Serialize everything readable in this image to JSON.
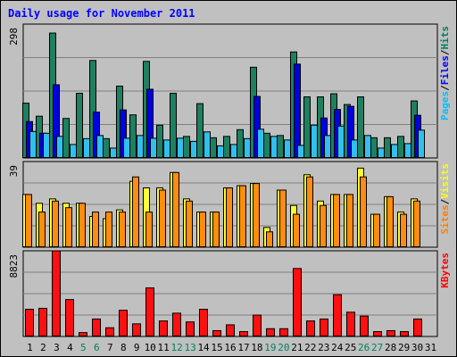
{
  "chart_data": {
    "type": "bar",
    "title": "Daily usage for November 2011",
    "days": [
      "1",
      "2",
      "3",
      "4",
      "5",
      "6",
      "7",
      "8",
      "9",
      "10",
      "11",
      "12",
      "13",
      "14",
      "15",
      "16",
      "17",
      "18",
      "19",
      "20",
      "21",
      "22",
      "23",
      "24",
      "25",
      "26",
      "27",
      "28",
      "29",
      "30",
      "31"
    ],
    "weekend_days": [
      "5",
      "6",
      "12",
      "13",
      "19",
      "20",
      "26",
      "27"
    ],
    "panels": [
      {
        "id": "hits",
        "ymax": 298,
        "ymax_label": "298",
        "legend": [
          {
            "name": "Pages",
            "color": "#00c0ff"
          },
          {
            "name": "/",
            "color": "#000000"
          },
          {
            "name": "Files",
            "color": "#0000ff"
          },
          {
            "name": "/",
            "color": "#000000"
          },
          {
            "name": "Hits",
            "color": "#008060"
          }
        ],
        "series": [
          {
            "name": "Hits",
            "color": "#1e8060",
            "values": [
              122,
              93,
              278,
              88,
              144,
              217,
              43,
              160,
              96,
              215,
              73,
              144,
              48,
              121,
              45,
              48,
              63,
              202,
              55,
              50,
              236,
              136,
              136,
              143,
              119,
              136,
              45,
              45,
              48,
              127,
              0
            ]
          },
          {
            "name": "Files",
            "color": "#0000e0",
            "values": [
              81,
              55,
              163,
              0,
              0,
              102,
              0,
              107,
              0,
              153,
              0,
              0,
              0,
              0,
              0,
              0,
              0,
              137,
              0,
              0,
              209,
              0,
              89,
              108,
              115,
              0,
              0,
              0,
              0,
              95,
              0
            ]
          },
          {
            "name": "Pages",
            "color": "#30c0f0",
            "values": [
              59,
              55,
              48,
              30,
              43,
              50,
              22,
              44,
              50,
              44,
              40,
              44,
              37,
              58,
              27,
              30,
              43,
              64,
              48,
              40,
              28,
              73,
              50,
              71,
              40,
              50,
              22,
              30,
              32,
              62,
              0
            ]
          }
        ]
      },
      {
        "id": "visits",
        "ymax": 39,
        "ymax_label": "39",
        "legend": [
          {
            "name": "Sites",
            "color": "#ff8000"
          },
          {
            "name": "/",
            "color": "#000000"
          },
          {
            "name": "Visits",
            "color": "#ffff00"
          }
        ],
        "series": [
          {
            "name": "Visits",
            "color": "#ffff30",
            "values": [
              24,
              20,
              22,
              20,
              20,
              14,
              13,
              17,
              30,
              27,
              27,
              34,
              22,
              16,
              16,
              27,
              28,
              29,
              9,
              26,
              19,
              33,
              21,
              24,
              24,
              36,
              15,
              23,
              16,
              22,
              0
            ]
          },
          {
            "name": "Sites",
            "color": "#ff8c10",
            "values": [
              24,
              16,
              21,
              18,
              20,
              16,
              16,
              16,
              32,
              16,
              26,
              34,
              21,
              16,
              16,
              27,
              28,
              29,
              7,
              26,
              15,
              32,
              19,
              24,
              24,
              32,
              15,
              23,
              15,
              21,
              0
            ]
          }
        ]
      },
      {
        "id": "kbytes",
        "ymax": 8823,
        "ymax_label": "8823",
        "legend": [
          {
            "name": "KBytes",
            "color": "#ff0000"
          }
        ],
        "series": [
          {
            "name": "KBytes",
            "color": "#ff1010",
            "values": [
              2800,
              2900,
              8823,
              3800,
              400,
              1800,
              900,
              2700,
              1300,
              5000,
              1600,
              2400,
              1500,
              2800,
              600,
              1200,
              500,
              2200,
              800,
              800,
              7000,
              1600,
              1800,
              4300,
              2500,
              2100,
              500,
              600,
              500,
              1800,
              0
            ]
          }
        ]
      }
    ]
  }
}
